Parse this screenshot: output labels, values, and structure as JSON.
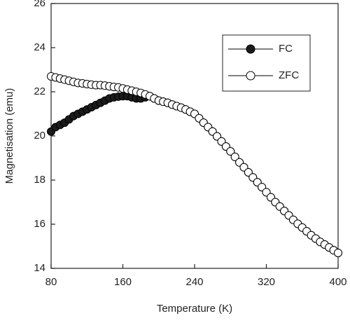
{
  "chart_data": {
    "type": "line",
    "x_label": "Temperature (K)",
    "y_label": "Magnetisation (emu)",
    "xlim": [
      80,
      400
    ],
    "xticks": [
      80,
      160,
      240,
      320,
      400
    ],
    "ylim": [
      14,
      26
    ],
    "yticks": [
      14,
      16,
      18,
      20,
      22,
      24,
      26
    ],
    "legend": "upper right",
    "edge_color": "#000000",
    "x": [
      80,
      85,
      90,
      95,
      100,
      105,
      110,
      115,
      120,
      125,
      130,
      135,
      140,
      145,
      150,
      155,
      160,
      165,
      170,
      175,
      180,
      185,
      190,
      195,
      200,
      205,
      210,
      215,
      220,
      225,
      230,
      235,
      240,
      245,
      250,
      255,
      260,
      265,
      270,
      275,
      280,
      285,
      290,
      295,
      300,
      305,
      310,
      315,
      320,
      325,
      330,
      335,
      340,
      345,
      350,
      355,
      360,
      365,
      370,
      375,
      380,
      385,
      390,
      395,
      400
    ],
    "series": [
      {
        "name": "FC",
        "color": "#1a1a1a",
        "values": [
          20.2,
          20.4,
          20.5,
          20.6,
          20.75,
          20.9,
          21.0,
          21.1,
          21.2,
          21.3,
          21.4,
          21.5,
          21.6,
          21.7,
          21.75,
          21.78,
          21.8,
          21.8,
          21.75,
          21.7,
          21.7,
          21.75,
          21.8,
          21.7,
          21.6,
          21.55,
          21.5,
          21.42,
          21.35,
          21.28,
          21.2,
          21.1,
          21.0,
          20.8,
          20.6,
          20.4,
          20.2,
          19.98,
          19.75,
          19.52,
          19.3,
          19.05,
          18.8,
          18.58,
          18.35,
          18.12,
          17.9,
          17.68,
          17.45,
          17.22,
          17.0,
          16.8,
          16.6,
          16.4,
          16.2,
          16.02,
          15.85,
          15.68,
          15.5,
          15.35,
          15.2,
          15.08,
          14.95,
          14.82,
          14.7
        ]
      },
      {
        "name": "ZFC",
        "color": "#ffffff",
        "values": [
          22.7,
          22.65,
          22.6,
          22.55,
          22.5,
          22.45,
          22.4,
          22.38,
          22.35,
          22.32,
          22.3,
          22.3,
          22.28,
          22.25,
          22.22,
          22.2,
          22.15,
          22.1,
          22.05,
          22.0,
          21.95,
          21.88,
          21.8,
          21.7,
          21.6,
          21.55,
          21.5,
          21.42,
          21.35,
          21.28,
          21.2,
          21.1,
          21.0,
          20.8,
          20.6,
          20.4,
          20.2,
          19.98,
          19.75,
          19.52,
          19.3,
          19.05,
          18.8,
          18.58,
          18.35,
          18.12,
          17.9,
          17.68,
          17.45,
          17.22,
          17.0,
          16.8,
          16.6,
          16.4,
          16.2,
          16.02,
          15.85,
          15.68,
          15.5,
          15.35,
          15.2,
          15.08,
          14.95,
          14.82,
          14.7
        ]
      }
    ]
  }
}
